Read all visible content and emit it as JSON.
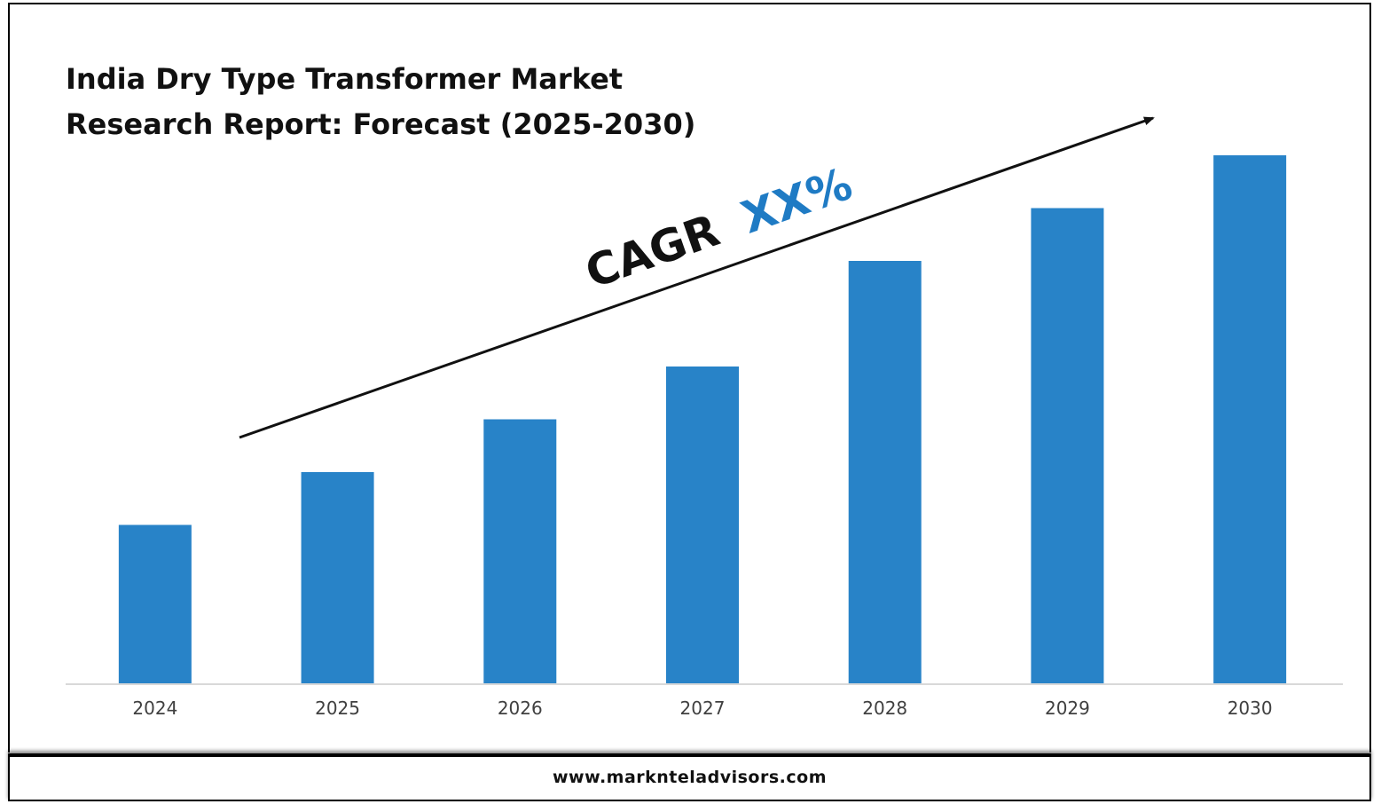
{
  "title": {
    "line1": "India Dry Type Transformer Market",
    "line2": "Research Report: Forecast (2025-2030)"
  },
  "annotation": {
    "label": "CAGR",
    "value": "XX%",
    "label_color": "#111111",
    "value_color": "#1f7bc4"
  },
  "footer": {
    "website": "www.marknteladvisors.com"
  },
  "colors": {
    "bar": "#2883c8",
    "axis": "#d9d9d9",
    "tick_label": "#404040"
  },
  "chart_data": {
    "type": "bar",
    "title": "India Dry Type Transformer Market Research Report: Forecast (2025-2030)",
    "xlabel": "",
    "ylabel": "",
    "categories": [
      "2024",
      "2025",
      "2026",
      "2027",
      "2028",
      "2029",
      "2030"
    ],
    "values": [
      30,
      40,
      50,
      60,
      80,
      90,
      100
    ],
    "ylim": [
      0,
      100
    ],
    "grid": false,
    "legend": "none",
    "trend_arrow": "upward, from 2024 to 2030"
  }
}
